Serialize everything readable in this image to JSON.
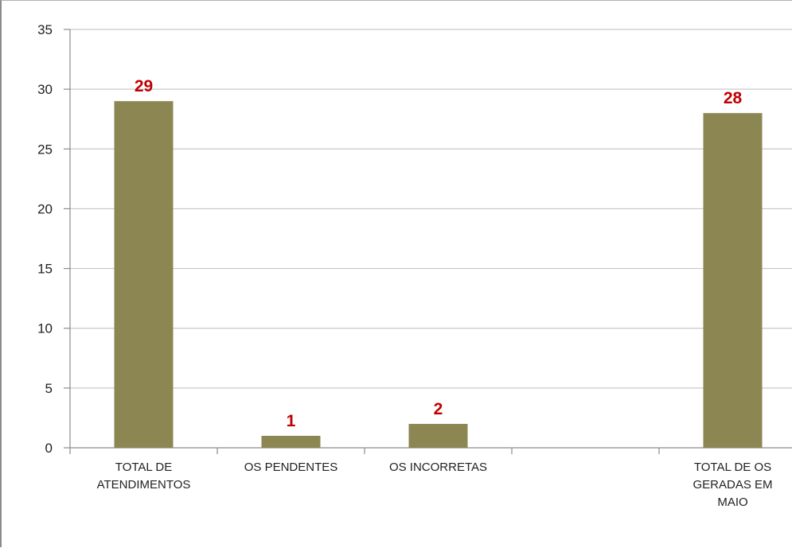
{
  "chart_data": {
    "type": "bar",
    "categories": [
      [
        "TOTAL DE",
        "ATENDIMENTOS"
      ],
      [
        "OS PENDENTES"
      ],
      [
        "OS INCORRETAS"
      ],
      [
        ""
      ],
      [
        "TOTAL DE OS",
        "GERADAS EM",
        "MAIO"
      ]
    ],
    "values": [
      29,
      1,
      2,
      null,
      28
    ],
    "data_labels": [
      "29",
      "1",
      "2",
      "",
      "28"
    ],
    "yticks": [
      "0",
      "5",
      "10",
      "15",
      "20",
      "25",
      "30",
      "35"
    ],
    "ylim": [
      0,
      35
    ],
    "grid": true,
    "legend": "none",
    "title": "",
    "xlabel": "",
    "ylabel": "",
    "colors": {
      "bar": "#8c8652",
      "data_label": "#c00000",
      "grid": "#c8c8c8",
      "axis": "#8c8c8c"
    }
  }
}
